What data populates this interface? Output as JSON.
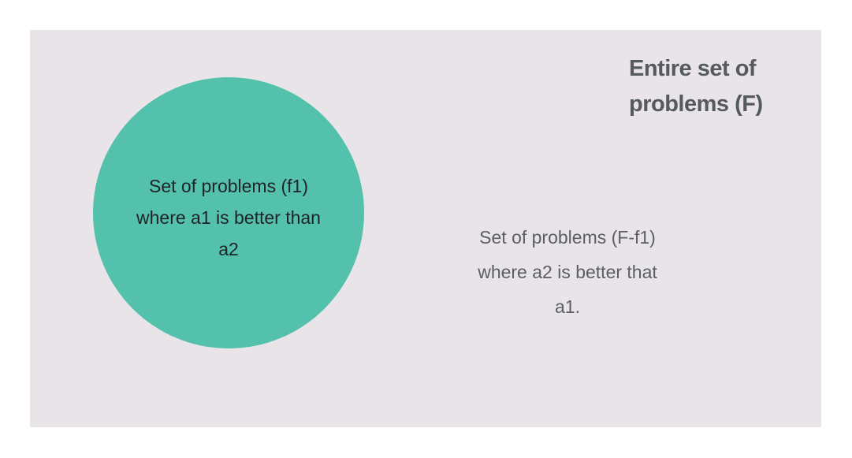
{
  "diagram": {
    "universe": {
      "label_lines": [
        "Entire set of",
        "problems (F)"
      ]
    },
    "subset": {
      "label_lines": [
        "Set of problems (f1)",
        "where a1 is better than",
        "a2"
      ],
      "fill_color": "#53c1ac"
    },
    "complement": {
      "label_lines": [
        "Set of problems (F-f1)",
        "where a2 is better that",
        "a1."
      ]
    },
    "background_color": "#e8e4e8"
  }
}
